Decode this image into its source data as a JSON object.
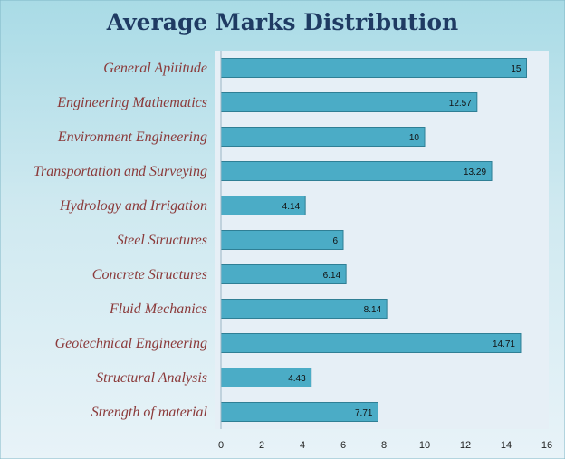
{
  "chart_data": {
    "type": "bar",
    "orientation": "horizontal",
    "title": "Average Marks Distribution",
    "categories": [
      "General Apititude",
      "Engineering Mathematics",
      "Environment Engineering",
      "Transportation and Surveying",
      "Hydrology and Irrigation",
      "Steel Structures",
      "Concrete Structures",
      "Fluid Mechanics",
      "Geotechnical Engineering",
      "Structural Analysis",
      "Strength of material"
    ],
    "values": [
      15,
      12.57,
      10,
      13.29,
      4.14,
      6,
      6.14,
      8.14,
      14.71,
      4.43,
      7.71
    ],
    "data_labels": [
      "15",
      "12.57",
      "10",
      "13.29",
      "4.14",
      "6",
      "6.14",
      "8.14",
      "14.71",
      "4.43",
      "7.71"
    ],
    "xlim": [
      0,
      16
    ],
    "xticks": [
      "0",
      "2",
      "4",
      "6",
      "8",
      "10",
      "12",
      "14",
      "16"
    ],
    "grid": false,
    "legend": "none",
    "colors": {
      "bar_fill": "#4bacc6",
      "bar_stroke": "#2f7f95",
      "plot_background": "#e6eff6",
      "category_label": "#8b3a3a",
      "title": "#1f3b63"
    }
  }
}
